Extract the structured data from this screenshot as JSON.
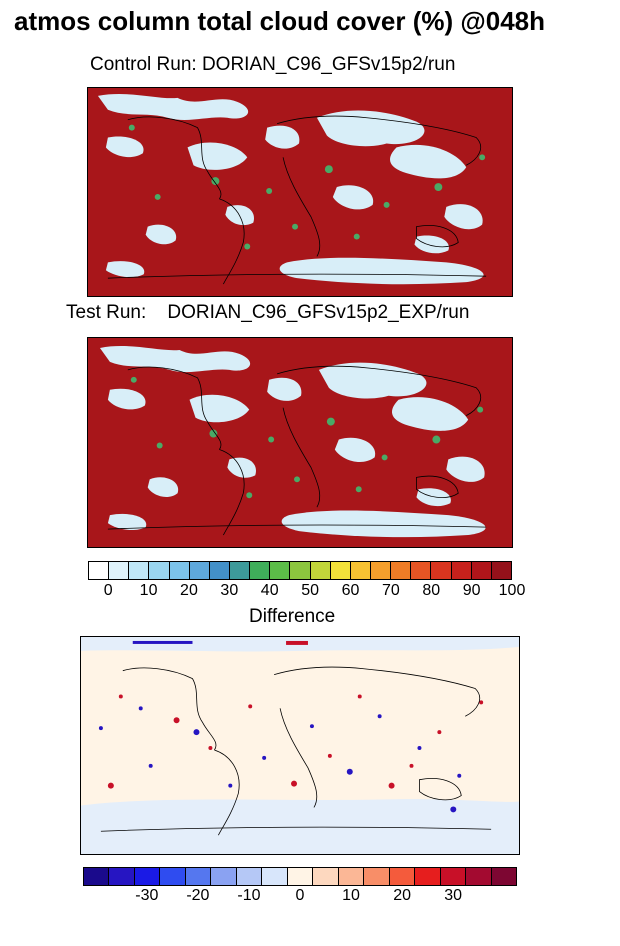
{
  "title": "atmos column total cloud cover (%) @048h",
  "panels": {
    "control": {
      "label": "Control Run: DORIAN_C96_GFSv15p2/run"
    },
    "test": {
      "label": "Test Run:    DORIAN_C96_GFSv15p2_EXP/run"
    },
    "difference": {
      "label": "Difference"
    }
  },
  "colorbars": {
    "cloud": {
      "colors": [
        "#ffffff",
        "#dff3fb",
        "#bfe7f7",
        "#9ad6f0",
        "#7cc3ea",
        "#5ea8dc",
        "#4390c8",
        "#3d9a9a",
        "#3fae5a",
        "#5cbd48",
        "#8cc53e",
        "#c2d63a",
        "#f3e23a",
        "#f7c232",
        "#f59f2c",
        "#ef7c26",
        "#e65524",
        "#d9351f",
        "#c7211c",
        "#b0151a",
        "#94111a"
      ],
      "ticks": [
        "0",
        "10",
        "20",
        "30",
        "40",
        "50",
        "60",
        "70",
        "80",
        "90",
        "100"
      ]
    },
    "difference": {
      "colors": [
        "#1a0a8c",
        "#2615c2",
        "#1a1ae6",
        "#2f4cf0",
        "#5577ef",
        "#8aa2f2",
        "#b5c8f6",
        "#d8e6fb",
        "#fff4e6",
        "#fdd8bf",
        "#fbb796",
        "#f88e68",
        "#f45b3c",
        "#e61e1e",
        "#c81028",
        "#a30a30",
        "#7d0632"
      ],
      "ticks": [
        "-30",
        "-20",
        "-10",
        "0",
        "10",
        "20",
        "30"
      ]
    }
  },
  "colors": {
    "cloud_base": "#a8161a",
    "cloud_mid": "#d9351f",
    "cloud_clear": "#d8eef8",
    "cloud_green": "#4aaa66",
    "diff_base": "#fff4e6",
    "diff_neutral": "#e4eefa",
    "diff_pos": "#c81028",
    "diff_neg": "#2615c2",
    "coastline": "#000000"
  }
}
